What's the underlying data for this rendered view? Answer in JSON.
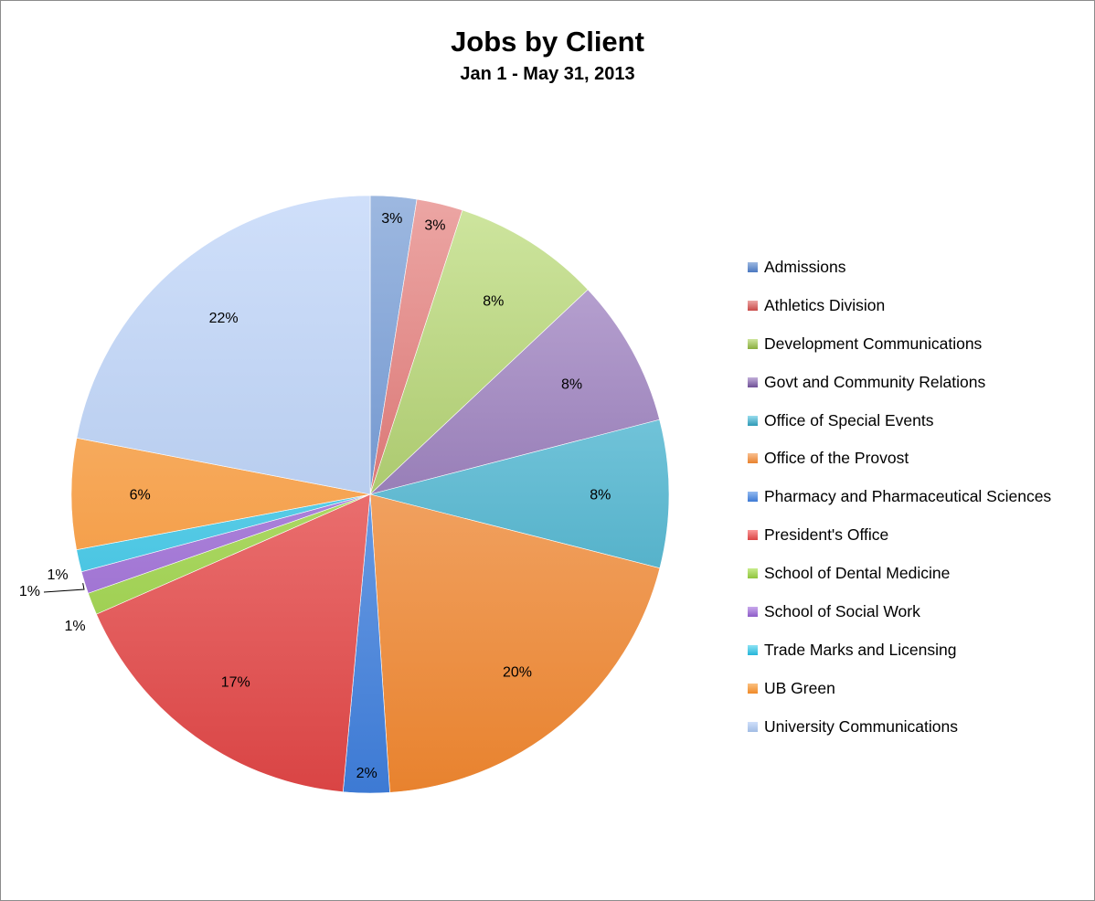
{
  "chart_data": {
    "type": "pie",
    "title": "Jobs by Client",
    "subtitle": "Jan 1 - May 31, 2013",
    "legend_position": "right",
    "slices": [
      {
        "label": "Admissions",
        "value": 2.5,
        "display": "3%",
        "color": "#4a78c0",
        "color_light": "#9db8e0"
      },
      {
        "label": "Athletics Division",
        "value": 2.5,
        "display": "3%",
        "color": "#c94a48",
        "color_light": "#eca6a4"
      },
      {
        "label": "Development Communications",
        "value": 8,
        "display": "8%",
        "color": "#89ad3e",
        "color_light": "#cfe6a0"
      },
      {
        "label": "Govt and Community Relations",
        "value": 8,
        "display": "8%",
        "color": "#6e4f96",
        "color_light": "#c2aed9"
      },
      {
        "label": "Office of Special Events",
        "value": 8,
        "display": "8%",
        "color": "#2e99b5",
        "color_light": "#98dcee"
      },
      {
        "label": "Office of the Provost",
        "value": 20,
        "display": "20%",
        "color": "#e8822e",
        "color_light": "#f9bf90"
      },
      {
        "label": "Pharmacy and Pharmaceutical Sciences",
        "value": 2.5,
        "display": "2%",
        "color": "#3d7ad4",
        "color_light": "#94baf0"
      },
      {
        "label": "President's Office",
        "value": 17,
        "display": "17%",
        "color": "#d94444",
        "color_light": "#fa9898"
      },
      {
        "label": "School of Dental Medicine",
        "value": 1.2,
        "display": "1%",
        "color": "#8fc43c",
        "color_light": "#c8ec8c"
      },
      {
        "label": "School of Social Work",
        "value": 1.2,
        "display": "1%",
        "color": "#8d5cc7",
        "color_light": "#c9a8ec"
      },
      {
        "label": "Trade Marks and Licensing",
        "value": 1.2,
        "display": "1%",
        "color": "#25b5d8",
        "color_light": "#8ce2f4"
      },
      {
        "label": "UB Green",
        "value": 6,
        "display": "6%",
        "color": "#f08a28",
        "color_light": "#fbc080"
      },
      {
        "label": "University Communications",
        "value": 22,
        "display": "22%",
        "color": "#a2bce4",
        "color_light": "#cfdffa"
      }
    ]
  }
}
